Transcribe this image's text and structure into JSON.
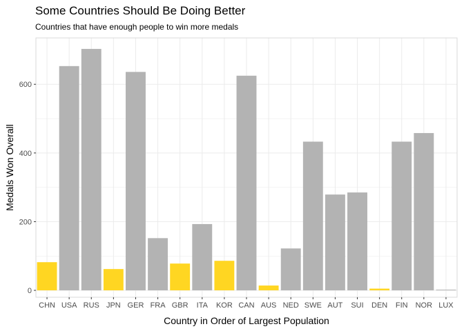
{
  "chart_data": {
    "type": "bar",
    "title": "Some Countries Should Be Doing Better",
    "subtitle": "Countries that have enough people to win more medals",
    "xlabel": "Country in Order of Largest Population",
    "ylabel": "Medals Won Overall",
    "categories": [
      "CHN",
      "USA",
      "RUS",
      "JPN",
      "GER",
      "FRA",
      "GBR",
      "ITA",
      "KOR",
      "CAN",
      "AUS",
      "NED",
      "SWE",
      "AUT",
      "SUI",
      "DEN",
      "FIN",
      "NOR",
      "LUX"
    ],
    "values": [
      82,
      653,
      703,
      62,
      636,
      152,
      78,
      193,
      86,
      625,
      14,
      122,
      433,
      279,
      285,
      5,
      433,
      458,
      2
    ],
    "highlight": [
      true,
      false,
      false,
      true,
      false,
      false,
      true,
      false,
      true,
      false,
      true,
      false,
      false,
      false,
      false,
      true,
      false,
      false,
      false
    ],
    "ylim": [
      -20,
      735
    ],
    "yticks": [
      0,
      200,
      400,
      600
    ],
    "grid": true,
    "legend": "none",
    "colors": {
      "highlight": "#FFD622",
      "default": "#B3B3B3",
      "grid": "#EBEBEB",
      "panel_border": "#D9D9D9"
    }
  }
}
